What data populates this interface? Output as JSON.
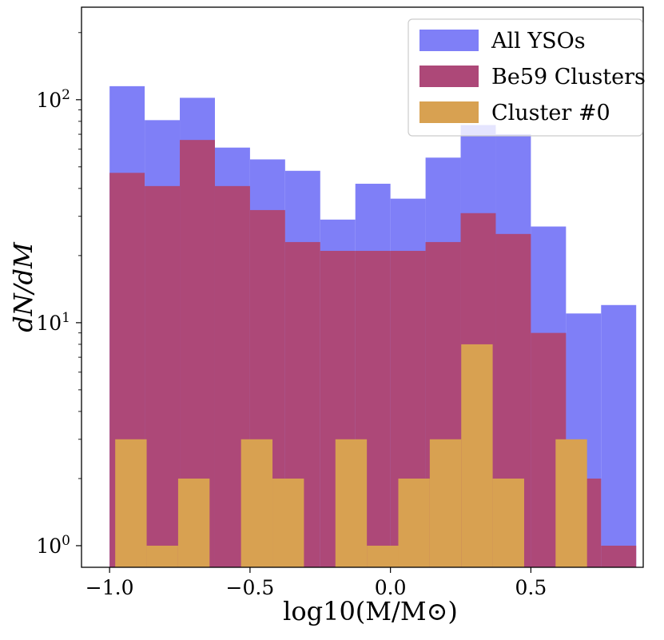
{
  "chart_data": {
    "type": "histogram",
    "yscale": "log",
    "xlim": [
      -1.1,
      0.9
    ],
    "ylim": [
      0.8,
      260
    ],
    "xlabel": "log10(M/M⊙)",
    "ylabel": "dN/dM",
    "xticks": [
      {
        "value": -1.0,
        "label": "−1.0"
      },
      {
        "value": -0.5,
        "label": "−0.5"
      },
      {
        "value": 0.0,
        "label": "0.0"
      },
      {
        "value": 0.5,
        "label": "0.5"
      }
    ],
    "yticks": [
      {
        "value": 1,
        "base": "10",
        "exp": "0"
      },
      {
        "value": 10,
        "base": "10",
        "exp": "1"
      },
      {
        "value": 100,
        "base": "10",
        "exp": "2"
      }
    ],
    "legend_position": "top-right",
    "series": [
      {
        "name": "All YSOs",
        "color": "#7f7ff7",
        "bin_edges": [
          -1.0,
          -0.875,
          -0.75,
          -0.625,
          -0.5,
          -0.375,
          -0.25,
          -0.125,
          0.0,
          0.125,
          0.25,
          0.375,
          0.5,
          0.625,
          0.75,
          0.875
        ],
        "values": [
          115,
          81,
          102,
          61,
          54,
          48,
          29,
          42,
          36,
          55,
          77,
          70,
          27,
          11,
          12
        ]
      },
      {
        "name": "Be59 Clusters",
        "color": "#ad4878",
        "bin_edges": [
          -1.0,
          -0.875,
          -0.75,
          -0.625,
          -0.5,
          -0.375,
          -0.25,
          -0.125,
          0.0,
          0.125,
          0.25,
          0.375,
          0.5,
          0.625,
          0.75,
          0.875
        ],
        "values": [
          47,
          41,
          66,
          41,
          32,
          23,
          21,
          21,
          21,
          23,
          31,
          25,
          9,
          2,
          1
        ]
      },
      {
        "name": "Cluster #0",
        "color": "#d8a151",
        "bin_edges": [
          -0.98,
          -0.868,
          -0.756,
          -0.644,
          -0.532,
          -0.42,
          -0.308,
          -0.196,
          -0.084,
          0.028,
          0.14,
          0.252,
          0.364,
          0.476,
          0.588,
          0.7
        ],
        "values": [
          3,
          1,
          2,
          0,
          3,
          2,
          0,
          3,
          1,
          2,
          3,
          8,
          2,
          0,
          3
        ]
      }
    ]
  }
}
